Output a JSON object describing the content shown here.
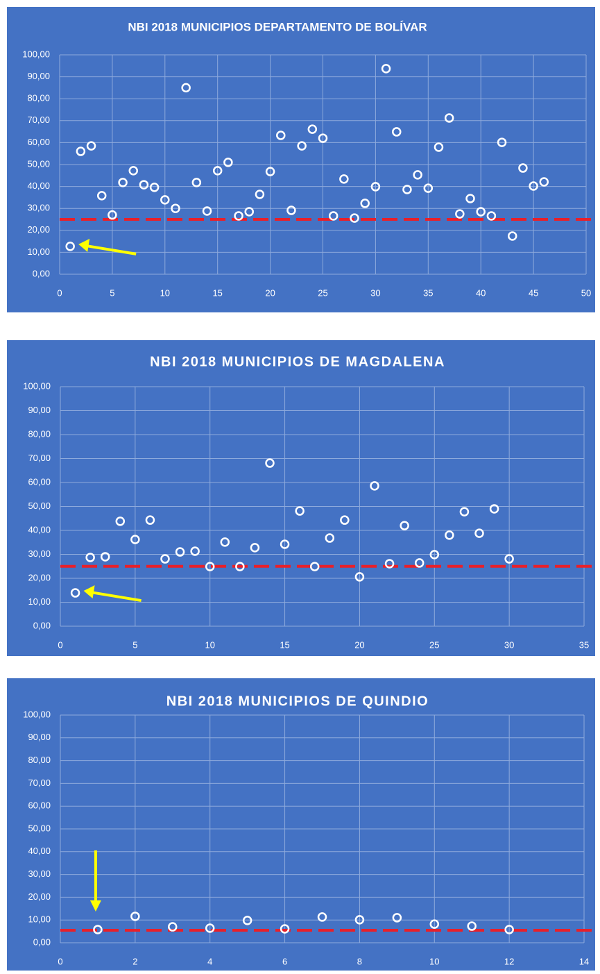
{
  "chart_data": [
    {
      "type": "scatter",
      "title": "NBI 2018 MUNICIPIOS DEPARTAMENTO DE BOLÍVAR",
      "x": [
        1,
        2,
        3,
        4,
        5,
        6,
        7,
        8,
        9,
        10,
        11,
        12,
        13,
        14,
        15,
        16,
        17,
        18,
        19,
        20,
        21,
        22,
        23,
        24,
        25,
        26,
        27,
        28,
        29,
        30,
        31,
        32,
        33,
        34,
        35,
        36,
        37,
        38,
        39,
        40,
        41,
        42,
        43,
        44,
        45,
        46
      ],
      "values": [
        12.7,
        56,
        58.5,
        35.8,
        27,
        41.8,
        47.2,
        40.8,
        39.6,
        33.9,
        30,
        85,
        41.8,
        28.8,
        47.2,
        51,
        26.6,
        28.5,
        36.4,
        46.8,
        63.3,
        29.1,
        58.5,
        66.1,
        62,
        26.6,
        43.4,
        25.6,
        32.3,
        39.9,
        93.7,
        64.9,
        38.6,
        45.3,
        39.2,
        57.9,
        71.2,
        27.5,
        34.5,
        28.5,
        26.6,
        60.1,
        17.4,
        48.4,
        40.2,
        42.1
      ],
      "xlim": [
        0,
        50
      ],
      "xticks": [
        0,
        5,
        10,
        15,
        20,
        25,
        30,
        35,
        40,
        45,
        50
      ],
      "ylim": [
        0,
        100
      ],
      "yticks": [
        {
          "value": 0,
          "label": "0,00"
        },
        {
          "value": 10,
          "label": "10,00"
        },
        {
          "value": 20,
          "label": "20,00"
        },
        {
          "value": 30,
          "label": "30,00"
        },
        {
          "value": 40,
          "label": "40,00"
        },
        {
          "value": 50,
          "label": "50,00"
        },
        {
          "value": 60,
          "label": "60,00"
        },
        {
          "value": 70,
          "label": "70,00"
        },
        {
          "value": 80,
          "label": "80,00"
        },
        {
          "value": 90,
          "label": "90,00"
        },
        {
          "value": 100,
          "label": "100,00"
        }
      ],
      "grid": true,
      "color": "#ffffff",
      "background": "#4472c4",
      "reference_line": {
        "value": 25,
        "color": "#e8202a"
      }
    },
    {
      "type": "scatter",
      "title": "NBI 2018 MUNICIPIOS DE MAGDALENA",
      "x": [
        1,
        2,
        3,
        4,
        5,
        6,
        7,
        8,
        9,
        10,
        11,
        12,
        13,
        14,
        15,
        16,
        17,
        18,
        19,
        20,
        21,
        22,
        23,
        24,
        25,
        26,
        27,
        28,
        29,
        30
      ],
      "values": [
        13.9,
        28.7,
        29,
        43.8,
        36.2,
        44.3,
        28.1,
        31,
        31.3,
        24.9,
        35.1,
        24.9,
        32.8,
        68.1,
        34.2,
        48.1,
        24.9,
        36.8,
        44.3,
        20.6,
        58.6,
        26.1,
        42,
        26.4,
        29.9,
        38,
        47.8,
        38.8,
        49,
        28.1
      ],
      "xlim": [
        0,
        35
      ],
      "xticks": [
        0,
        5,
        10,
        15,
        20,
        25,
        30,
        35
      ],
      "ylim": [
        0,
        100
      ],
      "yticks": [
        {
          "value": 0,
          "label": "0,00"
        },
        {
          "value": 10,
          "label": "10,00"
        },
        {
          "value": 20,
          "label": "20,00"
        },
        {
          "value": 30,
          "label": "30,00"
        },
        {
          "value": 40,
          "label": "40,00"
        },
        {
          "value": 50,
          "label": "50,00"
        },
        {
          "value": 60,
          "label": "60,00"
        },
        {
          "value": 70,
          "label": "70,00"
        },
        {
          "value": 80,
          "label": "80,00"
        },
        {
          "value": 90,
          "label": "90,00"
        },
        {
          "value": 100,
          "label": "100,00"
        }
      ],
      "grid": true,
      "color": "#ffffff",
      "background": "#4472c4",
      "reference_line": {
        "value": 25,
        "color": "#e8202a"
      }
    },
    {
      "type": "scatter",
      "title": "NBI 2018 MUNICIPIOS DE QUINDIO",
      "x": [
        1,
        2,
        3,
        4,
        5,
        6,
        7,
        8,
        9,
        10,
        11,
        12
      ],
      "values": [
        5.8,
        11.6,
        7,
        6.4,
        9.8,
        6.1,
        11.3,
        10.1,
        11,
        8.2,
        7.3,
        5.8
      ],
      "xlim": [
        0,
        14
      ],
      "xticks": [
        0,
        2,
        4,
        6,
        8,
        10,
        12,
        14
      ],
      "ylim": [
        0,
        100
      ],
      "yticks": [
        {
          "value": 0,
          "label": "0,00"
        },
        {
          "value": 10,
          "label": "10,00"
        },
        {
          "value": 20,
          "label": "20,00"
        },
        {
          "value": 30,
          "label": "30,00"
        },
        {
          "value": 40,
          "label": "40,00"
        },
        {
          "value": 50,
          "label": "50,00"
        },
        {
          "value": 60,
          "label": "60,00"
        },
        {
          "value": 70,
          "label": "70,00"
        },
        {
          "value": 80,
          "label": "80,00"
        },
        {
          "value": 90,
          "label": "90,00"
        },
        {
          "value": 100,
          "label": "100,00"
        }
      ],
      "grid": true,
      "color": "#ffffff",
      "background": "#4472c4",
      "reference_line": {
        "value": 5.5,
        "color": "#e8202a"
      }
    }
  ]
}
